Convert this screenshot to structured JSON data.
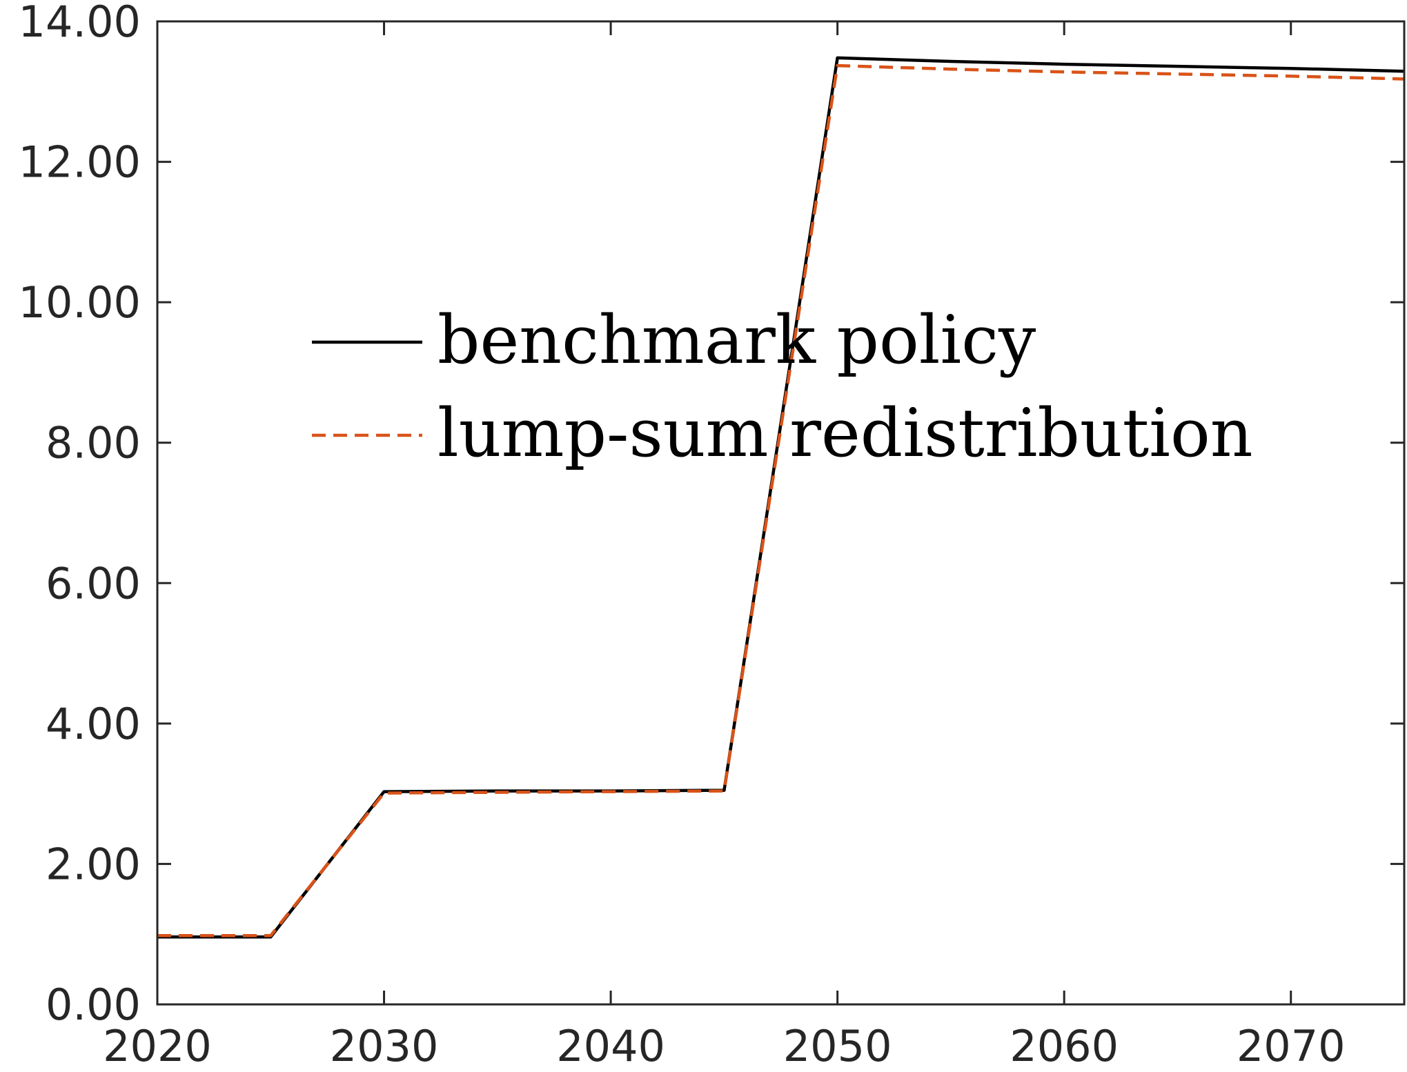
{
  "chart_data": {
    "type": "line",
    "title": "",
    "xlabel": "",
    "ylabel": "",
    "xlim": [
      2020,
      2075
    ],
    "ylim": [
      0,
      14
    ],
    "x_ticks": [
      2020,
      2030,
      2040,
      2050,
      2060,
      2070
    ],
    "x_tick_labels": [
      "2020",
      "2030",
      "2040",
      "2050",
      "2060",
      "2070"
    ],
    "y_ticks": [
      0,
      2,
      4,
      6,
      8,
      10,
      12,
      14
    ],
    "y_tick_labels": [
      "0.00",
      "2.00",
      "4.00",
      "6.00",
      "8.00",
      "10.00",
      "12.00",
      "14.00"
    ],
    "grid": false,
    "box": true,
    "legend_position": "center-left",
    "series": [
      {
        "name": "benchmark policy",
        "color": "#000000",
        "line_style": "solid",
        "x": [
          2020,
          2025,
          2030,
          2035,
          2040,
          2045,
          2050,
          2055,
          2060,
          2065,
          2070,
          2075
        ],
        "y": [
          0.96,
          0.96,
          3.03,
          3.04,
          3.04,
          3.05,
          13.48,
          13.43,
          13.39,
          13.36,
          13.33,
          13.29
        ]
      },
      {
        "name": "lump-sum redistribution",
        "color": "#D95319",
        "line_style": "dashed",
        "x": [
          2020,
          2025,
          2030,
          2035,
          2040,
          2045,
          2050,
          2055,
          2060,
          2065,
          2070,
          2075
        ],
        "y": [
          0.98,
          0.98,
          3.01,
          3.02,
          3.03,
          3.04,
          13.37,
          13.32,
          13.28,
          13.25,
          13.22,
          13.18
        ]
      }
    ]
  }
}
